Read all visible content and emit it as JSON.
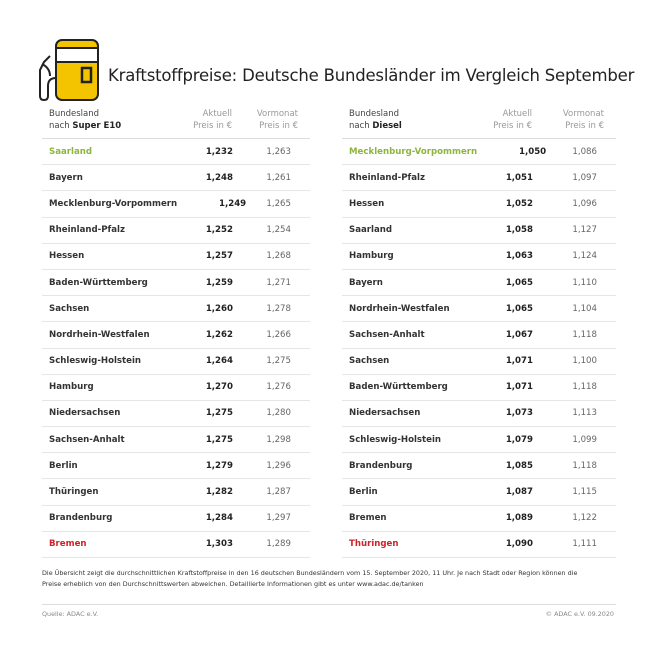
{
  "header": {
    "title": "Kraftstoffpreise: Deutsche Bundesländer im Vergleich September",
    "icon": "fuel-pump-icon",
    "accent": "#f5c400"
  },
  "colors": {
    "best": "#8cb63c",
    "worst": "#d0202a"
  },
  "tables": [
    {
      "col1_line1": "Bundesland",
      "col1_prefix": "nach ",
      "col1_fuel": "Super E10",
      "col2_line1": "Aktuell",
      "col2_line2": "Preis in €",
      "col3_line1": "Vormonat",
      "col3_line2": "Preis in €",
      "rows": [
        {
          "state": "Saarland",
          "current": "1,232",
          "previous": "1,263",
          "highlight": "best"
        },
        {
          "state": "Bayern",
          "current": "1,248",
          "previous": "1,261"
        },
        {
          "state": "Mecklenburg-Vorpommern",
          "current": "1,249",
          "previous": "1,265"
        },
        {
          "state": "Rheinland-Pfalz",
          "current": "1,252",
          "previous": "1,254"
        },
        {
          "state": "Hessen",
          "current": "1,257",
          "previous": "1,268"
        },
        {
          "state": "Baden-Württemberg",
          "current": "1,259",
          "previous": "1,271"
        },
        {
          "state": "Sachsen",
          "current": "1,260",
          "previous": "1,278"
        },
        {
          "state": "Nordrhein-Westfalen",
          "current": "1,262",
          "previous": "1,266"
        },
        {
          "state": "Schleswig-Holstein",
          "current": "1,264",
          "previous": "1,275"
        },
        {
          "state": "Hamburg",
          "current": "1,270",
          "previous": "1,276"
        },
        {
          "state": "Niedersachsen",
          "current": "1,275",
          "previous": "1,280"
        },
        {
          "state": "Sachsen-Anhalt",
          "current": "1,275",
          "previous": "1,298"
        },
        {
          "state": "Berlin",
          "current": "1,279",
          "previous": "1,296"
        },
        {
          "state": "Thüringen",
          "current": "1,282",
          "previous": "1,287"
        },
        {
          "state": "Brandenburg",
          "current": "1,284",
          "previous": "1,297"
        },
        {
          "state": "Bremen",
          "current": "1,303",
          "previous": "1,289",
          "highlight": "worst"
        }
      ]
    },
    {
      "col1_line1": "Bundesland",
      "col1_prefix": "nach ",
      "col1_fuel": "Diesel",
      "col2_line1": "Aktuell",
      "col2_line2": "Preis in €",
      "col3_line1": "Vormonat",
      "col3_line2": "Preis in €",
      "rows": [
        {
          "state": "Mecklenburg-Vorpommern",
          "current": "1,050",
          "previous": "1,086",
          "highlight": "best"
        },
        {
          "state": "Rheinland-Pfalz",
          "current": "1,051",
          "previous": "1,097"
        },
        {
          "state": "Hessen",
          "current": "1,052",
          "previous": "1,096"
        },
        {
          "state": "Saarland",
          "current": "1,058",
          "previous": "1,127"
        },
        {
          "state": "Hamburg",
          "current": "1,063",
          "previous": "1,124"
        },
        {
          "state": "Bayern",
          "current": "1,065",
          "previous": "1,110"
        },
        {
          "state": "Nordrhein-Westfalen",
          "current": "1,065",
          "previous": "1,104"
        },
        {
          "state": "Sachsen-Anhalt",
          "current": "1,067",
          "previous": "1,118"
        },
        {
          "state": "Sachsen",
          "current": "1,071",
          "previous": "1,100"
        },
        {
          "state": "Baden-Württemberg",
          "current": "1,071",
          "previous": "1,118"
        },
        {
          "state": "Niedersachsen",
          "current": "1,073",
          "previous": "1,113"
        },
        {
          "state": "Schleswig-Holstein",
          "current": "1,079",
          "previous": "1,099"
        },
        {
          "state": "Brandenburg",
          "current": "1,085",
          "previous": "1,118"
        },
        {
          "state": "Berlin",
          "current": "1,087",
          "previous": "1,115"
        },
        {
          "state": "Bremen",
          "current": "1,089",
          "previous": "1,122"
        },
        {
          "state": "Thüringen",
          "current": "1,090",
          "previous": "1,111",
          "highlight": "worst"
        }
      ]
    }
  ],
  "footer": {
    "note_line1": "Die Übersicht zeigt die durchschnittlichen Kraftstoffpreise in den 16 deutschen Bundesländern vom 15. September 2020, 11 Uhr.  Je nach Stadt oder Region können die",
    "note_line2": "Preise erheblich von den Durchschnittswerten abweichen. Detaillierte Informationen gibt es unter www.adac.de/tanken",
    "source": "Quelle: ADAC e.V.",
    "copyright": "© ADAC e.V. 09.2020"
  }
}
